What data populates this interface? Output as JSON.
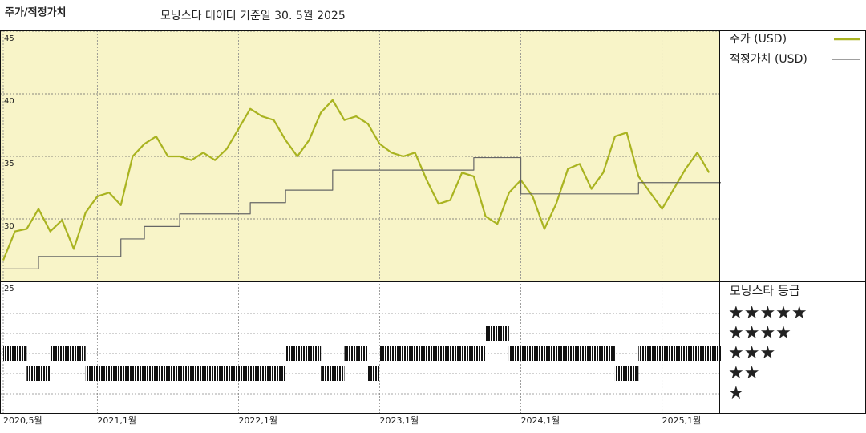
{
  "chart_data": {
    "type": "line",
    "title": "주가/적정가치",
    "subtitle": "모닝스타 데이터 기준일 30. 5월 2025",
    "x": [
      "2020-05",
      "2020-06",
      "2020-07",
      "2020-08",
      "2020-09",
      "2020-10",
      "2020-11",
      "2020-12",
      "2021-01",
      "2021-02",
      "2021-03",
      "2021-04",
      "2021-05",
      "2021-06",
      "2021-07",
      "2021-08",
      "2021-09",
      "2021-10",
      "2021-11",
      "2021-12",
      "2022-01",
      "2022-02",
      "2022-03",
      "2022-04",
      "2022-05",
      "2022-06",
      "2022-07",
      "2022-08",
      "2022-09",
      "2022-10",
      "2022-11",
      "2022-12",
      "2023-01",
      "2023-02",
      "2023-03",
      "2023-04",
      "2023-05",
      "2023-06",
      "2023-07",
      "2023-08",
      "2023-09",
      "2023-10",
      "2023-11",
      "2023-12",
      "2024-01",
      "2024-02",
      "2024-03",
      "2024-04",
      "2024-05",
      "2024-06",
      "2024-07",
      "2024-08",
      "2024-09",
      "2024-10",
      "2024-11",
      "2024-12",
      "2025-01",
      "2025-02",
      "2025-03",
      "2025-04",
      "2025-05"
    ],
    "series": [
      {
        "name": "주가 (USD)",
        "color": "#a9b320",
        "values": [
          26.7,
          29.0,
          29.2,
          30.8,
          29.0,
          29.9,
          27.6,
          30.5,
          31.8,
          32.1,
          31.1,
          35.0,
          36.0,
          36.6,
          35.0,
          35.0,
          34.7,
          35.3,
          34.7,
          35.6,
          37.2,
          38.8,
          38.2,
          37.9,
          36.3,
          35.0,
          36.3,
          38.5,
          39.5,
          37.9,
          38.2,
          37.6,
          36.0,
          35.3,
          35.0,
          35.3,
          33.1,
          31.2,
          31.5,
          33.7,
          33.4,
          30.2,
          29.6,
          32.1,
          33.1,
          31.8,
          29.2,
          31.2,
          34.0,
          34.4,
          32.4,
          33.7,
          36.6,
          36.9,
          33.4,
          32.1,
          30.8,
          32.4,
          34.0,
          35.3,
          33.7
        ]
      },
      {
        "name": "적정가치 (USD)",
        "color": "#666666",
        "step": true,
        "values": [
          26.0,
          26.0,
          26.0,
          27.0,
          27.0,
          27.0,
          27.0,
          27.0,
          27.0,
          27.0,
          28.4,
          28.4,
          29.4,
          29.4,
          29.4,
          30.4,
          30.4,
          30.4,
          30.4,
          30.4,
          30.4,
          31.3,
          31.3,
          31.3,
          32.3,
          32.3,
          32.3,
          32.3,
          33.9,
          33.9,
          33.9,
          33.9,
          33.9,
          33.9,
          33.9,
          33.9,
          33.9,
          33.9,
          33.9,
          33.9,
          34.9,
          34.9,
          34.9,
          34.9,
          32.0,
          32.0,
          32.0,
          32.0,
          32.0,
          32.0,
          32.0,
          32.0,
          32.0,
          32.0,
          32.9,
          32.9,
          32.9,
          32.9,
          32.9,
          32.9,
          32.9
        ]
      }
    ],
    "xlim": [
      "2020-05",
      "2025-06"
    ],
    "xticks": [
      {
        "value": "2020-05",
        "label": "2020,5월"
      },
      {
        "value": "2021-01",
        "label": "2021,1월"
      },
      {
        "value": "2022-01",
        "label": "2022,1월"
      },
      {
        "value": "2023-01",
        "label": "2023,1월"
      },
      {
        "value": "2024-01",
        "label": "2024,1월"
      },
      {
        "value": "2025-01",
        "label": "2025,1월"
      }
    ],
    "ylim": [
      25,
      45
    ],
    "yticks": [
      25,
      30,
      35,
      40,
      45
    ],
    "grid": true,
    "legend": "right",
    "background": "#f8f4c8",
    "rating": {
      "title": "모닝스타 등급",
      "ticks": [
        {
          "value": 5,
          "label": "★★★★★"
        },
        {
          "value": 4,
          "label": "★★★★"
        },
        {
          "value": 3,
          "label": "★★★"
        },
        {
          "value": 2,
          "label": "★★"
        },
        {
          "value": 1,
          "label": "★"
        }
      ],
      "periods": [
        {
          "stars": 3,
          "start": "2020-05",
          "end": "2020-07"
        },
        {
          "stars": 2,
          "start": "2020-07",
          "end": "2020-09"
        },
        {
          "stars": 3,
          "start": "2020-09",
          "end": "2020-12"
        },
        {
          "stars": 2,
          "start": "2020-12",
          "end": "2022-05"
        },
        {
          "stars": 3,
          "start": "2022-05",
          "end": "2022-08"
        },
        {
          "stars": 2,
          "start": "2022-08",
          "end": "2022-10"
        },
        {
          "stars": 3,
          "start": "2022-10",
          "end": "2022-11"
        },
        {
          "stars": 3,
          "start": "2022-11",
          "end": "2022-12"
        },
        {
          "stars": 2,
          "start": "2022-12",
          "end": "2023-01"
        },
        {
          "stars": 3,
          "start": "2023-01",
          "end": "2023-10"
        },
        {
          "stars": 4,
          "start": "2023-10",
          "end": "2023-12"
        },
        {
          "stars": 3,
          "start": "2023-12",
          "end": "2024-09"
        },
        {
          "stars": 2,
          "start": "2024-09",
          "end": "2024-11"
        },
        {
          "stars": 3,
          "start": "2024-11",
          "end": "2025-06"
        }
      ]
    }
  }
}
